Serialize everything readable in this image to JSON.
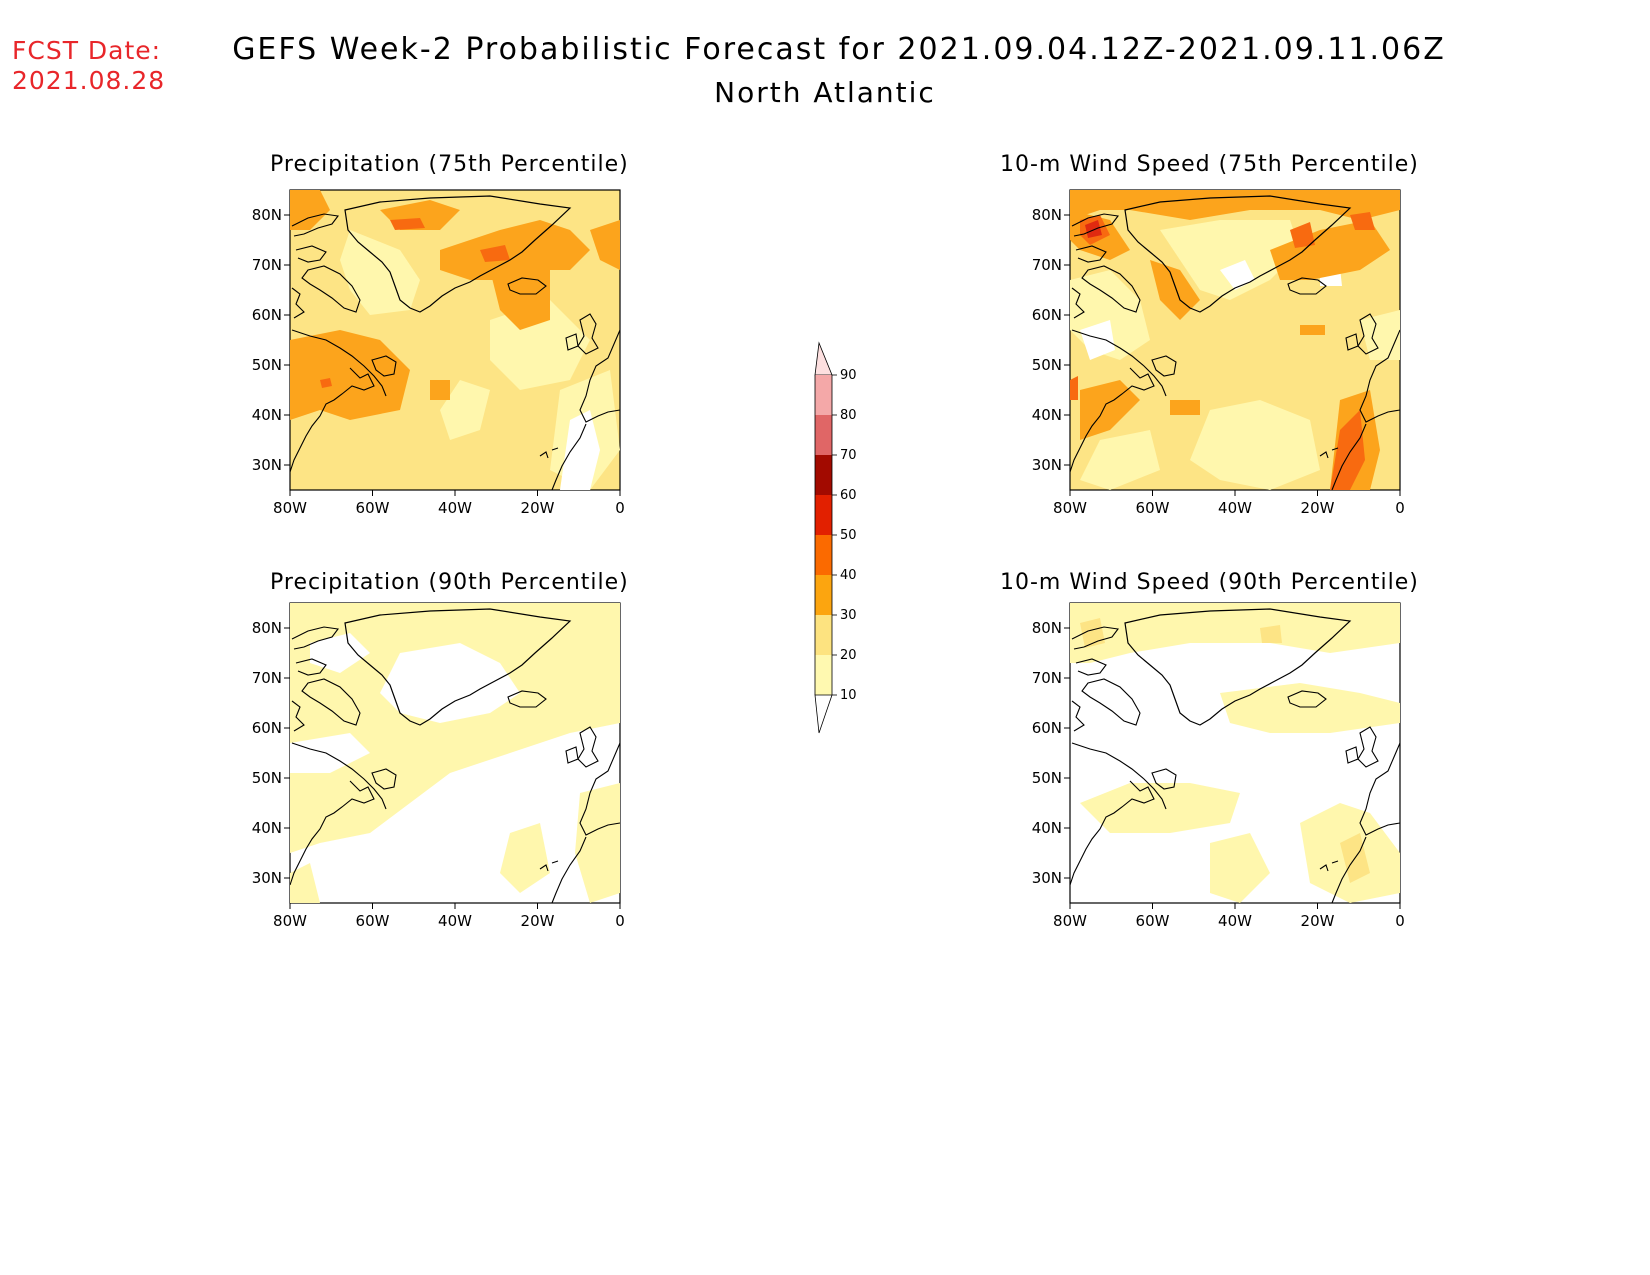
{
  "header": {
    "fcst_label": "FCST Date:",
    "fcst_date": "2021.08.28",
    "title": "GEFS Week-2 Probabilistic Forecast for 2021.09.04.12Z-2021.09.11.06Z",
    "subtitle": "North Atlantic"
  },
  "panels": [
    {
      "id": "precip75",
      "title": "Precipitation (75th Percentile)"
    },
    {
      "id": "wind75",
      "title": "10-m Wind Speed (75th Percentile)"
    },
    {
      "id": "precip90",
      "title": "Precipitation (90th Percentile)"
    },
    {
      "id": "wind90",
      "title": "10-m Wind Speed (90th Percentile)"
    }
  ],
  "axes": {
    "lon_labels": [
      "80W",
      "60W",
      "40W",
      "20W",
      "0"
    ],
    "lat_labels": [
      "80N",
      "70N",
      "60N",
      "50N",
      "40N",
      "30N"
    ]
  },
  "colorbar": {
    "levels": [
      "10",
      "20",
      "30",
      "40",
      "50",
      "60",
      "70",
      "80",
      "90"
    ],
    "colors": [
      "#fff9b0",
      "#fde380",
      "#fca50f",
      "#fb6a00",
      "#e22000",
      "#a20a00",
      "#e06666",
      "#f4a8a8",
      "#fde0e0"
    ]
  },
  "map_colors": {
    "land_outline": "#000000",
    "level_10_20": "#fff7ad",
    "level_20_30": "#fde485",
    "level_30_40": "#fca41c",
    "level_40_50": "#f86a10",
    "level_50_60": "#e02a10",
    "no_signal": "#ffffff"
  }
}
